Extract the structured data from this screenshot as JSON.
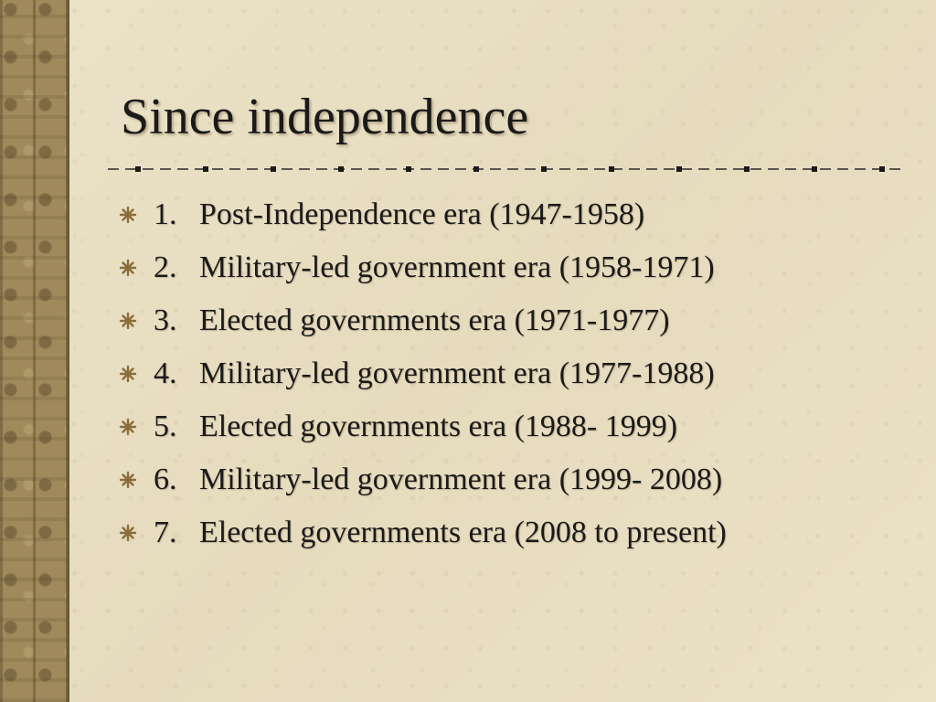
{
  "slide": {
    "title": "Since independence",
    "items": [
      {
        "number": "1.",
        "text": "Post-Independence era (1947-1958)"
      },
      {
        "number": "2.",
        "text": "Military-led government era (1958-1971)"
      },
      {
        "number": "3.",
        "text": "Elected governments era (1971-1977)"
      },
      {
        "number": "4.",
        "text": "Military-led government era (1977-1988)"
      },
      {
        "number": "5.",
        "text": "Elected governments era (1988- 1999)"
      },
      {
        "number": "6.",
        "text": "Military-led government era (1999- 2008)"
      },
      {
        "number": "7.",
        "text": "Elected governments era (2008 to present)"
      }
    ],
    "bullet_icon": "asterisk-bullet-icon"
  },
  "colors": {
    "background": "#e9dfc4",
    "text": "#1a1a1a",
    "bullet": "#8a6d3b",
    "strip": "#a08a5c"
  }
}
